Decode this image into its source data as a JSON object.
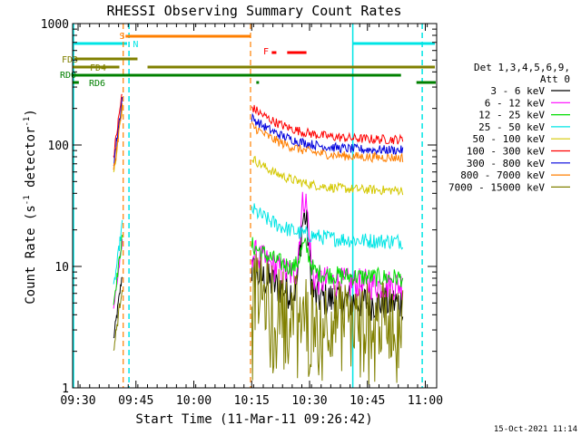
{
  "chart_data": {
    "type": "line",
    "title": "RHESSI Observing Summary Count Rates",
    "xlabel": "Start Time (11-Mar-11 09:26:42)",
    "ylabel_main": "Count Rate (s",
    "ylabel_sup1": "-1",
    "ylabel_mid": " detector",
    "ylabel_sup2": "-1",
    "ylabel_end": ")",
    "y_scale": "log",
    "ylim": [
      1,
      1000
    ],
    "xlim_minutes": [
      0,
      100
    ],
    "x_tick_labels": [
      "09:30",
      "09:45",
      "10:00",
      "10:15",
      "10:30",
      "10:45",
      "11:00"
    ],
    "y_tick_labels": [
      "1",
      "10",
      "100",
      "1000"
    ],
    "legend_header": [
      "Det 1,3,4,5,6,9,",
      "Att 0"
    ],
    "series": [
      {
        "name": "3 - 6 keV",
        "color": "#000000"
      },
      {
        "name": "6 - 12 keV",
        "color": "#ff00ff"
      },
      {
        "name": "12 - 25 keV",
        "color": "#00dd00"
      },
      {
        "name": "25 - 50 keV",
        "color": "#00e5e5"
      },
      {
        "name": "50 - 100 keV",
        "color": "#d4c800"
      },
      {
        "name": "100 - 300 keV",
        "color": "#ff0000"
      },
      {
        "name": "300 - 800 keV",
        "color": "#0000dd"
      },
      {
        "name": "800 - 7000 keV",
        "color": "#ff7f00"
      },
      {
        "name": "7000 - 15000 keV",
        "color": "#808000"
      }
    ],
    "flags": {
      "S": "S",
      "N": "N",
      "F": "F",
      "FD3": "FD3",
      "FD4": "FD4",
      "RDO": "RDO",
      "RD6": "RD6"
    },
    "timestamp": "15-Oct-2021 11:14"
  }
}
